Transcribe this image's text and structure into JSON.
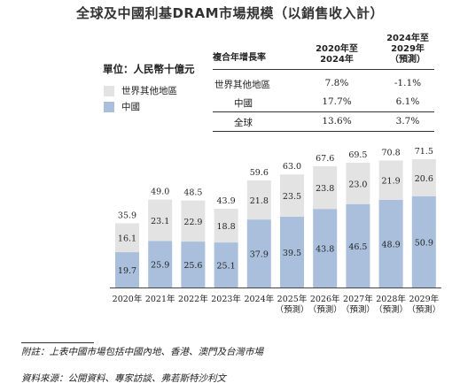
{
  "title": "全球及中國利基DRAM市場規模（以銷售收入計）",
  "unit": "單位：人民幣十億元",
  "legend": [
    {
      "label": "世界其他地區",
      "color": "#e3e3e3"
    },
    {
      "label": "中國",
      "color": "#a9bfdc"
    }
  ],
  "cagr_table": {
    "header_label": "複合年增長率",
    "col1": "2020年至\n2024年",
    "col2": "2024年至\n2029年\n（預測）",
    "rows": [
      {
        "label": "世界其他地區",
        "v1": "7.8%",
        "v2": "-1.1%"
      },
      {
        "label": "中國",
        "v1": "17.7%",
        "v2": "6.1%"
      },
      {
        "label": "全球",
        "v1": "13.6%",
        "v2": "3.7%"
      }
    ]
  },
  "chart_data": {
    "type": "bar",
    "stacked": true,
    "categories": [
      "2020年",
      "2021年",
      "2022年",
      "2023年",
      "2024年",
      "2025年\n（預測）",
      "2026年\n（預測）",
      "2027年\n（預測）",
      "2028年\n（預測）",
      "2029年\n（預測）"
    ],
    "series": [
      {
        "name": "中國",
        "values": [
          19.7,
          25.9,
          25.6,
          25.1,
          37.9,
          39.5,
          43.8,
          46.5,
          48.9,
          50.9
        ],
        "color": "#a9bfdc"
      },
      {
        "name": "世界其他地區",
        "values": [
          16.1,
          23.1,
          22.9,
          18.8,
          21.8,
          23.5,
          23.8,
          23.0,
          21.9,
          20.6
        ],
        "color": "#e3e3e3"
      }
    ],
    "totals": [
      35.9,
      49.0,
      48.5,
      43.9,
      59.6,
      63.0,
      67.6,
      69.5,
      70.8,
      71.5
    ],
    "ylim": [
      0,
      71.5
    ],
    "grid": false
  },
  "notes": {
    "note1": "附註：上表中國市場包括中國內地、香港、澳門及台灣市場",
    "note2": "資料來源：公開資料、專家訪談、弗若斯特沙利文"
  }
}
